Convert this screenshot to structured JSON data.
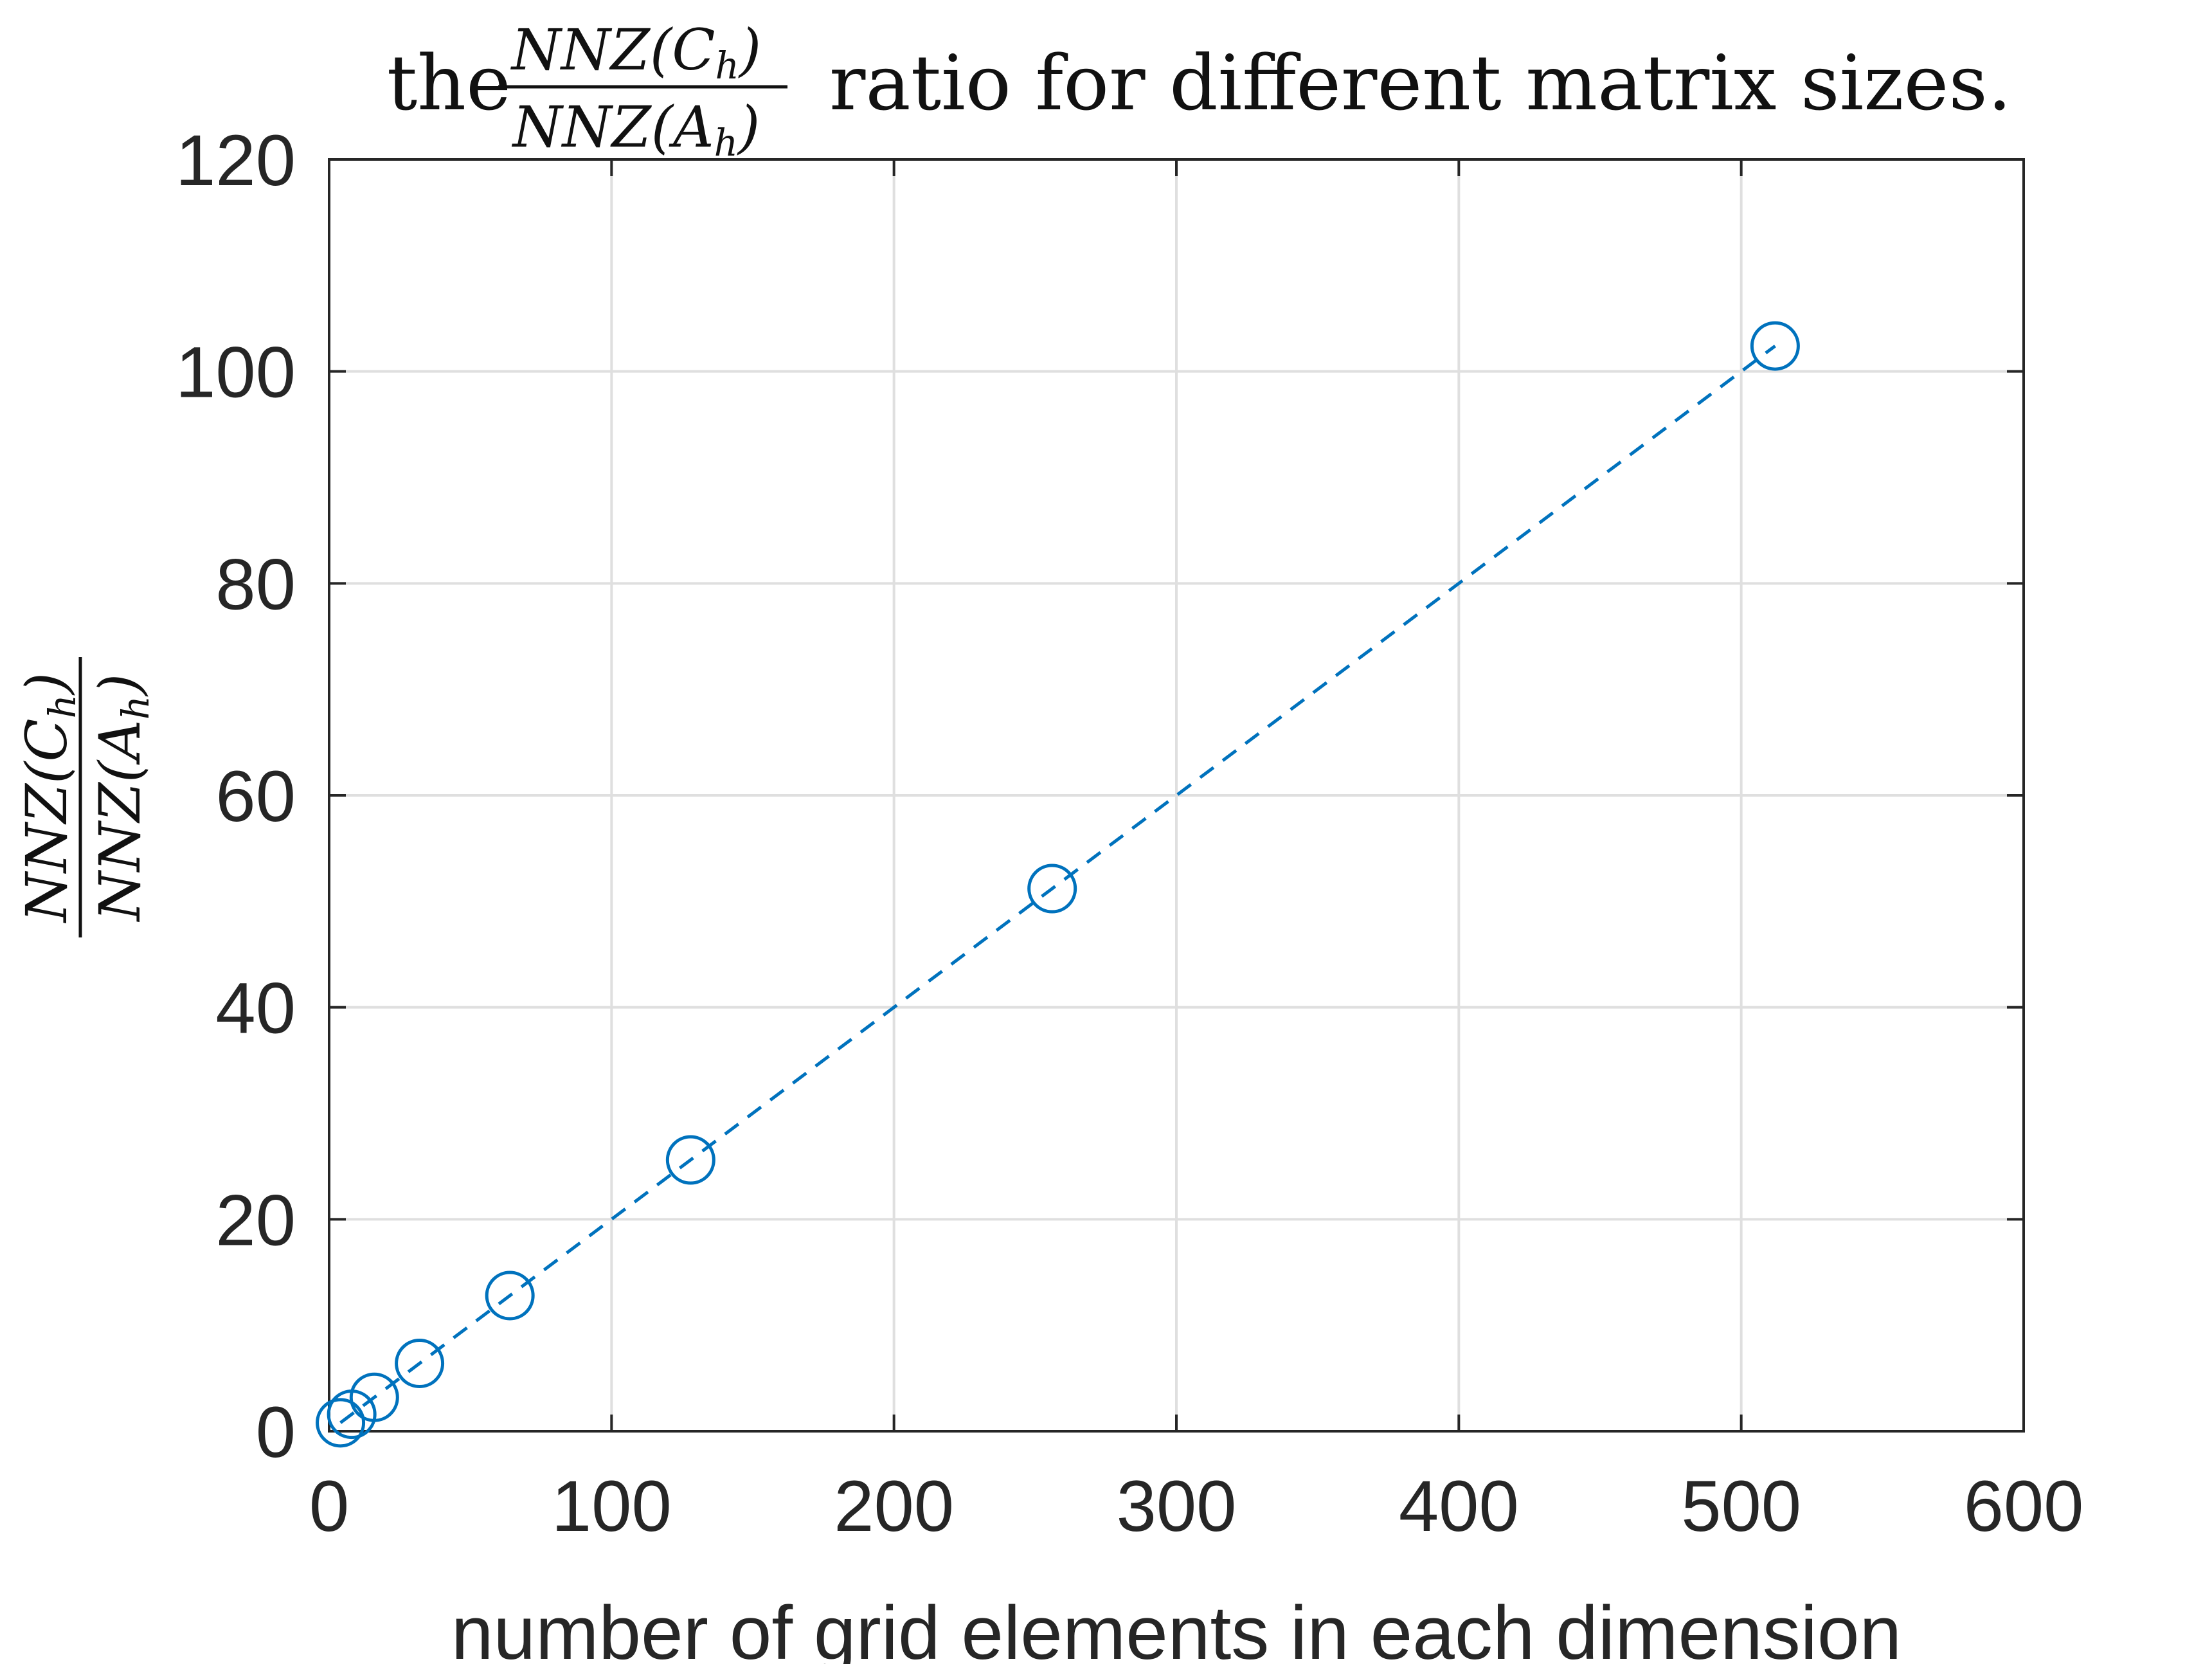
{
  "chart_data": {
    "type": "line",
    "title": {
      "prefix": "the",
      "numerator": "NNZ(C",
      "numerator_sub": "h",
      "denominator": "NNZ(A",
      "denominator_sub": "h",
      "close_paren": ")",
      "suffix": "ratio for different matrix sizes."
    },
    "xlabel": "number of grid elements in each dimension",
    "ylabel": {
      "numerator": "NNZ(C",
      "numerator_sub": "h",
      "denominator": "NNZ(A",
      "denominator_sub": "h",
      "close_paren": ")"
    },
    "xlim": [
      0,
      600
    ],
    "ylim": [
      0,
      120
    ],
    "xticks": [
      "0",
      "100",
      "200",
      "300",
      "400",
      "500",
      "600"
    ],
    "yticks": [
      "0",
      "20",
      "40",
      "60",
      "80",
      "100",
      "120"
    ],
    "grid": true,
    "series": [
      {
        "x": [
          4,
          8,
          16,
          32,
          64,
          128,
          256,
          512
        ],
        "y": [
          0.8,
          1.6,
          3.2,
          6.4,
          12.8,
          25.6,
          51.2,
          102.4
        ],
        "color": "#0072BD",
        "line_style": "dashed",
        "marker": "circle-open"
      }
    ],
    "colors": {
      "axis": "#262626",
      "grid": "#dfdfdf",
      "series": "#0072BD"
    }
  }
}
